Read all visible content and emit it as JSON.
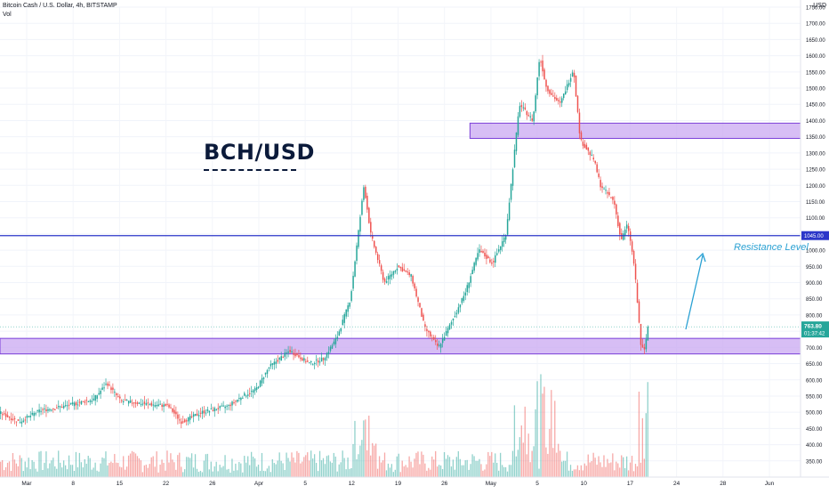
{
  "header": {
    "symbol_line": "Bitcoin Cash / U.S. Dollar, 4h, BITSTAMP",
    "volume_label": "Vol",
    "currency": "USD"
  },
  "annotation": {
    "title": "BCH/USD",
    "resistance_text": "Resistance Level"
  },
  "colors": {
    "up": "#26a69a",
    "down": "#ef5350",
    "zone_fill": "#c9a8f2",
    "zone_border": "#7b3fd9",
    "resistance_line": "#2c37c9",
    "arrow": "#2aa1d3",
    "price_badge": "#26a69a"
  },
  "chart_data": {
    "type": "line",
    "title": "",
    "xlabel": "",
    "ylabel": "",
    "ylim": [
      300,
      1750
    ],
    "y_ticks": [
      350,
      400,
      450,
      500,
      550,
      600,
      650,
      700,
      750,
      800,
      850,
      900,
      950,
      1000,
      1050,
      1100,
      1150,
      1200,
      1250,
      1300,
      1350,
      1400,
      1450,
      1500,
      1550,
      1600,
      1650,
      1700,
      1750
    ],
    "y_tick_labels": [
      "350.00",
      "400.00",
      "450.00",
      "500.00",
      "550.00",
      "600.00",
      "650.00",
      "700.00",
      "750.00",
      "800.00",
      "850.00",
      "900.00",
      "950.00",
      "1000.00",
      "1050.00",
      "1100.00",
      "1150.00",
      "1200.00",
      "1250.00",
      "1300.00",
      "1350.00",
      "1400.00",
      "1450.00",
      "1500.00",
      "1550.00",
      "1600.00",
      "1650.00",
      "1700.00",
      "1750.00"
    ],
    "x_ticks": [
      "Mar",
      "8",
      "15",
      "22",
      "26",
      "Apr",
      "5",
      "12",
      "19",
      "26",
      "May",
      "5",
      "10",
      "17",
      "24",
      "28",
      "Jun"
    ],
    "price_path": [
      [
        0,
        500
      ],
      [
        0.03,
        470
      ],
      [
        0.06,
        505
      ],
      [
        0.1,
        520
      ],
      [
        0.14,
        540
      ],
      [
        0.16,
        590
      ],
      [
        0.18,
        535
      ],
      [
        0.22,
        525
      ],
      [
        0.25,
        520
      ],
      [
        0.27,
        470
      ],
      [
        0.3,
        500
      ],
      [
        0.34,
        520
      ],
      [
        0.36,
        550
      ],
      [
        0.38,
        570
      ],
      [
        0.4,
        640
      ],
      [
        0.43,
        690
      ],
      [
        0.46,
        650
      ],
      [
        0.48,
        665
      ],
      [
        0.5,
        730
      ],
      [
        0.52,
        850
      ],
      [
        0.54,
        1200
      ],
      [
        0.55,
        1050
      ],
      [
        0.57,
        900
      ],
      [
        0.59,
        950
      ],
      [
        0.61,
        920
      ],
      [
        0.63,
        760
      ],
      [
        0.65,
        700
      ],
      [
        0.67,
        780
      ],
      [
        0.69,
        870
      ],
      [
        0.71,
        1000
      ],
      [
        0.73,
        960
      ],
      [
        0.75,
        1050
      ],
      [
        0.77,
        1450
      ],
      [
        0.79,
        1400
      ],
      [
        0.8,
        1600
      ],
      [
        0.81,
        1500
      ],
      [
        0.83,
        1450
      ],
      [
        0.85,
        1560
      ],
      [
        0.86,
        1340
      ],
      [
        0.88,
        1280
      ],
      [
        0.89,
        1200
      ],
      [
        0.91,
        1150
      ],
      [
        0.92,
        1030
      ],
      [
        0.93,
        1080
      ],
      [
        0.94,
        950
      ],
      [
        0.95,
        700
      ],
      [
        0.955,
        690
      ],
      [
        0.96,
        763.8
      ]
    ],
    "current_price": "763.80",
    "countdown": "01:37:42",
    "resistance_level": 1045,
    "resistance_label": "1045.00",
    "zones": [
      {
        "low": 1345,
        "high": 1392,
        "from": 0.636
      },
      {
        "low": 680,
        "high": 728,
        "from": 0.0
      }
    ]
  }
}
